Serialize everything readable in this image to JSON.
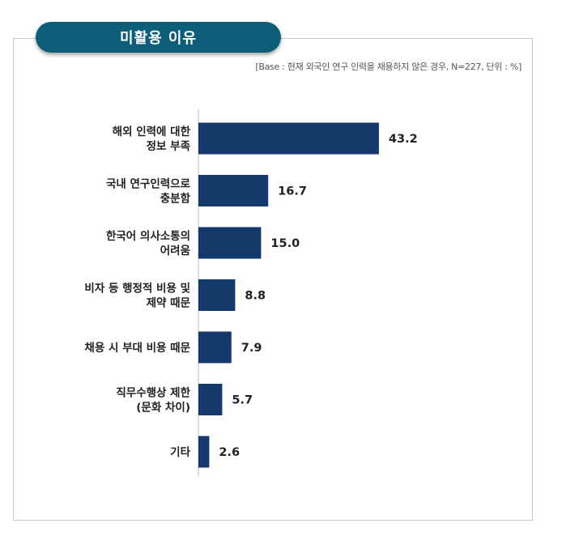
{
  "chart_data": {
    "type": "bar",
    "orientation": "horizontal",
    "title": "미활용 이유",
    "subtitle": "[Base : 현재 외국인 연구 인력을 채용하지 않은 경우, N=227, 단위 : %]",
    "categories": [
      [
        "해외 인력에 대한",
        "정보 부족"
      ],
      [
        "국내 연구인력으로",
        "충분함"
      ],
      [
        "한국어 의사소통의",
        "어려움"
      ],
      [
        "비자 등 행정적 비용 및",
        "제약 때문"
      ],
      [
        "채용 시 부대 비용 때문"
      ],
      [
        "직무수행상 제한",
        "(문화 차이)"
      ],
      [
        "기타"
      ]
    ],
    "values": [
      43.2,
      16.7,
      15.0,
      8.8,
      7.9,
      5.7,
      2.6
    ],
    "value_labels": [
      "43.2",
      "16.7",
      "15.0",
      "8.8",
      "7.9",
      "5.7",
      "2.6"
    ],
    "xlim": [
      0,
      50
    ],
    "bar_color": "#14396b",
    "title_color": "#0d5e78",
    "grid": false,
    "legend": "none"
  }
}
